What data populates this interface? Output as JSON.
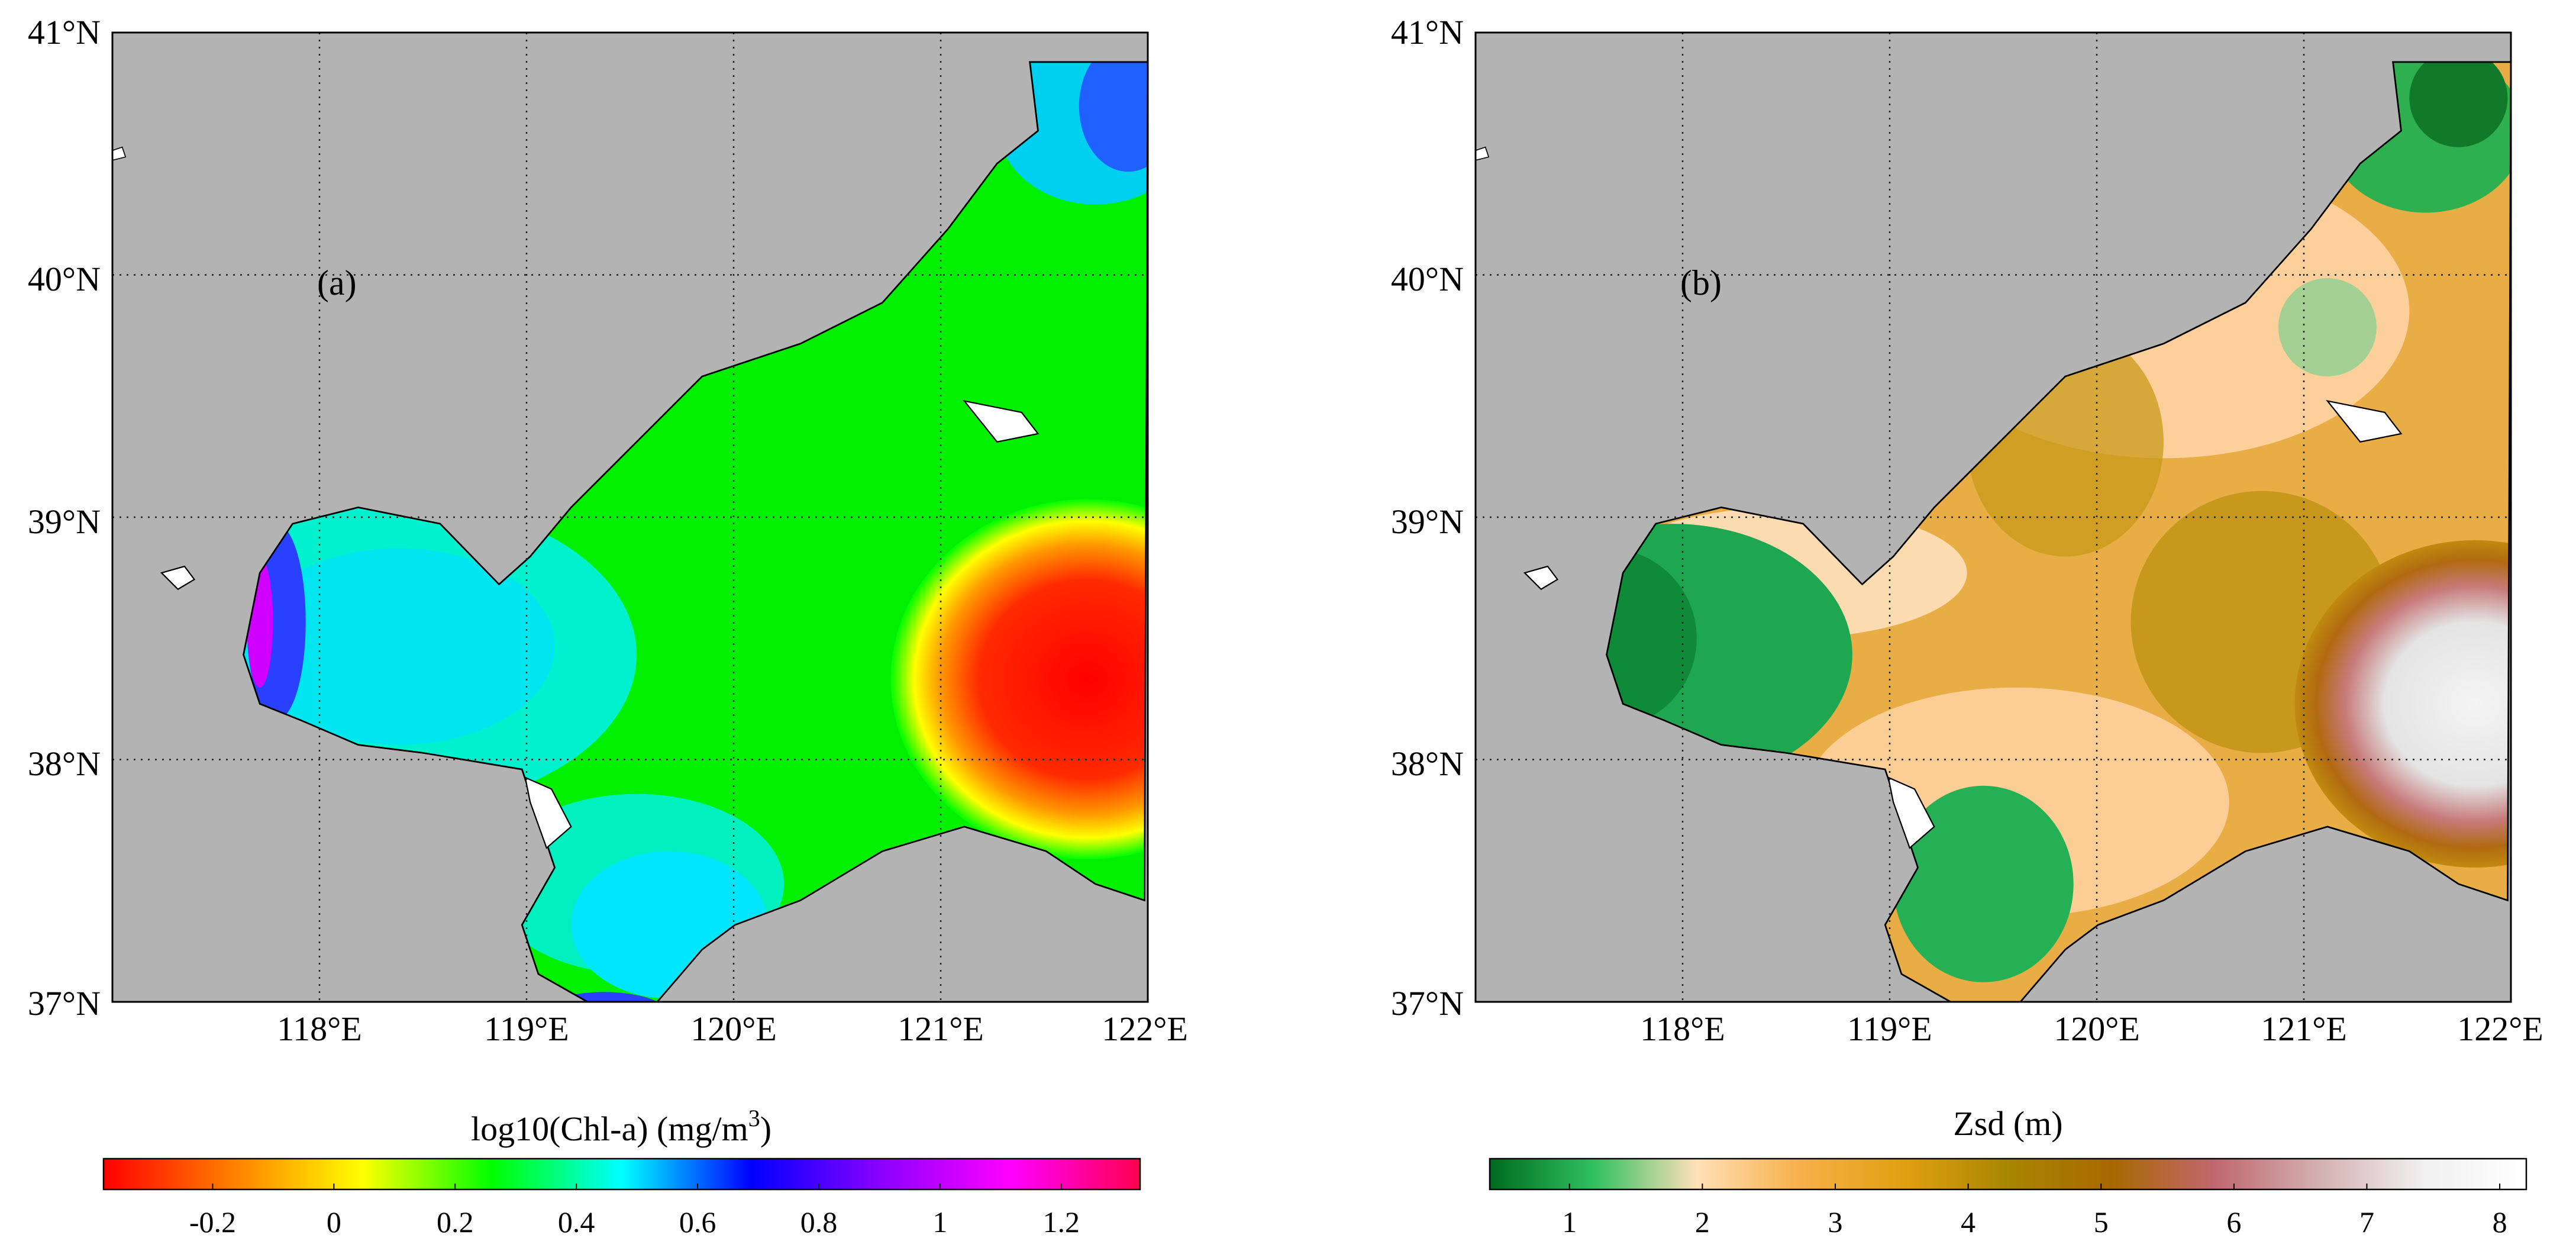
{
  "panels": [
    {
      "id": "a",
      "tag": "(a)",
      "lat_labels": [
        "41°N",
        "40°N",
        "39°N",
        "38°N",
        "37°N"
      ],
      "lon_labels": [
        "118°E",
        "119°E",
        "120°E",
        "121°E",
        "122°E"
      ],
      "colorbar": {
        "title_main": "log10(Chl-a) (mg/m",
        "title_sup": "3",
        "title_end": ")",
        "ticks": [
          "-0.2",
          "0",
          "0.2",
          "0.4",
          "0.6",
          "0.8",
          "1",
          "1.2"
        ],
        "range": [
          -0.38,
          1.33
        ],
        "tick_values": [
          -0.2,
          0,
          0.2,
          0.4,
          0.6,
          0.8,
          1,
          1.2
        ],
        "colors": [
          "#ff0000",
          "#ff7f00",
          "#ffff00",
          "#00ff00",
          "#00ffff",
          "#0000ff",
          "#8b00ff",
          "#ff00ff",
          "#ff0050"
        ]
      }
    },
    {
      "id": "b",
      "tag": "(b)",
      "lat_labels": [
        "41°N",
        "40°N",
        "39°N",
        "38°N",
        "37°N"
      ],
      "lon_labels": [
        "118°E",
        "119°E",
        "120°E",
        "121°E",
        "122°E"
      ],
      "colorbar": {
        "title_main": "Zsd (m)",
        "title_sup": "",
        "title_end": "",
        "ticks": [
          "1",
          "2",
          "3",
          "4",
          "5",
          "6",
          "7",
          "8"
        ],
        "range": [
          0.4,
          8.2
        ],
        "tick_values": [
          1,
          2,
          3,
          4,
          5,
          6,
          7,
          8
        ],
        "colors": [
          "#006b1f",
          "#2fc060",
          "#ffe0b8",
          "#f7b04a",
          "#e0a010",
          "#a88600",
          "#a86800",
          "#c06870",
          "#d4b0b0",
          "#f0f0f0",
          "#ffffff"
        ]
      }
    }
  ],
  "map_colors": {
    "land": "#b3b3b3",
    "sea_a_main": "#00f000",
    "sea_a_coastal": "#00ffff",
    "sea_a_hot": "#ff1a00",
    "sea_b_main": "#e8ad45",
    "sea_b_light": "#ffd7a8",
    "sea_b_green": "#1ea650",
    "sea_b_clear": "#eeeeee"
  }
}
